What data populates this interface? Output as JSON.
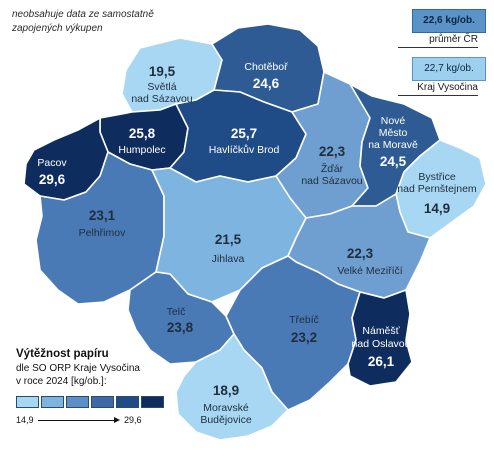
{
  "note": "neobsahuje data ze samostatně zapojených výkupen",
  "averages": {
    "cr_value": "22,6 kg/ob.",
    "cr_label": "průměr ČR",
    "kraj_value": "22,7 kg/ob.",
    "kraj_label": "Kraj Vysočina"
  },
  "legend": {
    "title": "Výtěžnost papíru",
    "line1": "dle SO ORP Kraje Vysočina",
    "line2": "v roce 2024 [kg/ob.]:",
    "min": "14,9",
    "max": "29,6",
    "colors": [
      "#a7d7f3",
      "#7eb4e0",
      "#5b8fc5",
      "#3d6aa6",
      "#1f4b86",
      "#0e2c5e"
    ]
  },
  "regions": [
    {
      "name": "Světlá nad Sázavou",
      "label1": "Světlá",
      "label2": "nad Sázavou",
      "value": "19,5",
      "color": "#a7d7f3",
      "text": "light"
    },
    {
      "name": "Chotěboř",
      "label1": "Chotěboř",
      "label2": "",
      "value": "24,6",
      "color": "#2e5b93",
      "text": "dark"
    },
    {
      "name": "Humpolec",
      "label1": "Humpolec",
      "label2": "",
      "value": "25,8",
      "color": "#0e2c5e",
      "text": "dark"
    },
    {
      "name": "Havlíčkův Brod",
      "label1": "Havlíčkův Brod",
      "label2": "",
      "value": "25,7",
      "color": "#1f4b86",
      "text": "dark"
    },
    {
      "name": "Žďár nad Sázavou",
      "label1": "Žďár",
      "label2": "nad Sázavou",
      "value": "22,3",
      "color": "#6f9fd1",
      "text": "light"
    },
    {
      "name": "Nové Město na Moravě",
      "label1": "Nové",
      "label2": "Město",
      "label3": "na Moravě",
      "value": "24,5",
      "color": "#2e5b93",
      "text": "dark"
    },
    {
      "name": "Bystřice nad Pernštejnem",
      "label1": "Bystřice",
      "label2": "nad Pernštejnem",
      "value": "14,9",
      "color": "#a7d7f3",
      "text": "light"
    },
    {
      "name": "Pacov",
      "label1": "Pacov",
      "label2": "",
      "value": "29,6",
      "color": "#0e2c5e",
      "text": "dark"
    },
    {
      "name": "Pelhřimov",
      "label1": "Pelhřimov",
      "label2": "",
      "value": "23,1",
      "color": "#4a7ab5",
      "text": "light"
    },
    {
      "name": "Jihlava",
      "label1": "Jihlava",
      "label2": "",
      "value": "21,5",
      "color": "#7eb4e0",
      "text": "light"
    },
    {
      "name": "Velké Meziříčí",
      "label1": "Velké Meziříčí",
      "label2": "",
      "value": "22,3",
      "color": "#6f9fd1",
      "text": "light"
    },
    {
      "name": "Telč",
      "label1": "Telč",
      "label2": "",
      "value": "23,8",
      "color": "#4a7ab5",
      "text": "light"
    },
    {
      "name": "Třebíč",
      "label1": "Třebíč",
      "label2": "",
      "value": "23,2",
      "color": "#4a7ab5",
      "text": "light"
    },
    {
      "name": "Náměšť nad Oslavou",
      "label1": "Náměšť",
      "label2": "nad Oslavou",
      "value": "26,1",
      "color": "#0e2c5e",
      "text": "dark"
    },
    {
      "name": "Moravské Budějovice",
      "label1": "Moravské",
      "label2": "Budějovice",
      "value": "18,9",
      "color": "#a7d7f3",
      "text": "light"
    }
  ]
}
